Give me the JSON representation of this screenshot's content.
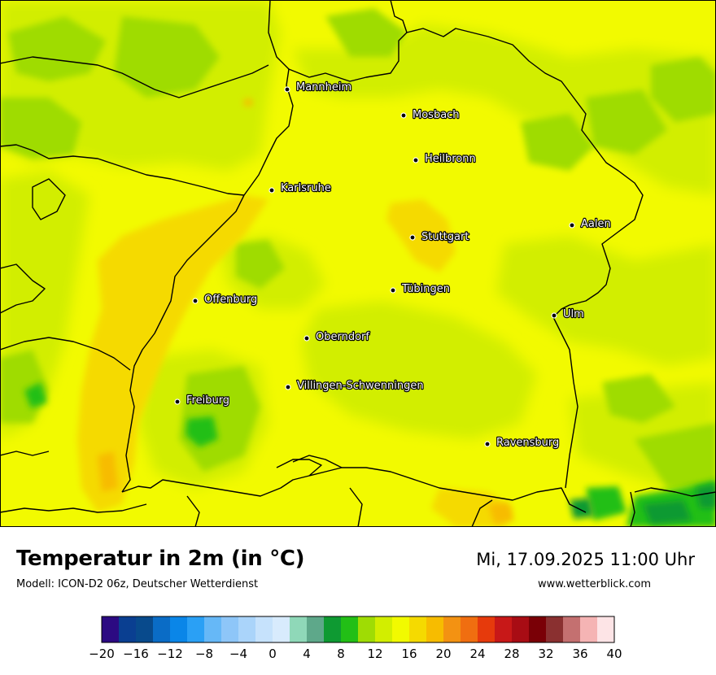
{
  "map": {
    "cities": [
      {
        "name": "Mannheim",
        "icon": "city-dot-icon"
      },
      {
        "name": "Mosbach",
        "icon": "city-dot-icon"
      },
      {
        "name": "Heilbronn",
        "icon": "city-dot-icon"
      },
      {
        "name": "Karlsruhe",
        "icon": "city-dot-icon"
      },
      {
        "name": "Stuttgart",
        "icon": "city-dot-icon"
      },
      {
        "name": "Aalen",
        "icon": "city-dot-icon"
      },
      {
        "name": "Tübingen",
        "icon": "city-dot-icon"
      },
      {
        "name": "Offenburg",
        "icon": "city-dot-icon"
      },
      {
        "name": "Ulm",
        "icon": "city-dot-icon"
      },
      {
        "name": "Oberndorf",
        "icon": "city-dot-icon"
      },
      {
        "name": "Villingen-Schwenningen",
        "icon": "city-dot-icon"
      },
      {
        "name": "Freiburg",
        "icon": "city-dot-icon"
      },
      {
        "name": "Ravensburg",
        "icon": "city-dot-icon"
      }
    ]
  },
  "header": {
    "title": "Temperatur in 2m (in °C)",
    "subtitle": "Modell: ICON-D2 06z, Deutscher Wetterdienst",
    "datetime": "Mi, 17.09.2025 11:00 Uhr",
    "website": "www.wetterblick.com"
  },
  "legend": {
    "min": -20,
    "max": 40,
    "step": 2,
    "tick_labels": [
      "−20",
      "−16",
      "−12",
      "−8",
      "−4",
      "0",
      "4",
      "8",
      "12",
      "16",
      "20",
      "24",
      "28",
      "32",
      "36",
      "40"
    ],
    "colors": [
      "#2c0a82",
      "#0a3f91",
      "#084a8c",
      "#0a6cc6",
      "#0a86e8",
      "#2aa0f5",
      "#66b8f7",
      "#8ec6f8",
      "#aad4fa",
      "#c6e2fc",
      "#d8ebfd",
      "#8fd8b8",
      "#5ea88a",
      "#0e9a32",
      "#22bf16",
      "#9fdc04",
      "#d2ee00",
      "#f2fa00",
      "#f5da00",
      "#f7bc00",
      "#f39212",
      "#f06e10",
      "#e63a0c",
      "#c81818",
      "#a80c14",
      "#7a0006",
      "#8a3030",
      "#c47070",
      "#f5b4b4",
      "#fde4e6"
    ]
  }
}
